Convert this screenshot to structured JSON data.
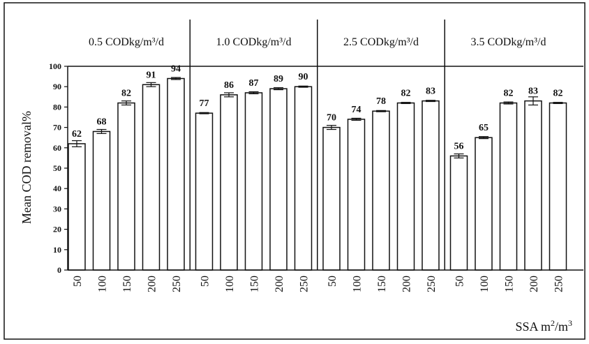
{
  "chart_data": {
    "type": "bar",
    "ylabel": "Mean COD removal%",
    "xlabel_main": "SSA m",
    "xlabel_sup1": "2",
    "xlabel_mid": "/m",
    "xlabel_sup2": "3",
    "ylim": [
      0,
      100
    ],
    "yticks": [
      {
        "v": 0,
        "t": "0"
      },
      {
        "v": 10,
        "t": "10"
      },
      {
        "v": 20,
        "t": "20"
      },
      {
        "v": 30,
        "t": "30"
      },
      {
        "v": 40,
        "t": "40"
      },
      {
        "v": 50,
        "t": "50"
      },
      {
        "v": 60,
        "t": "60"
      },
      {
        "v": 70,
        "t": "70"
      },
      {
        "v": 80,
        "t": "80"
      },
      {
        "v": 90,
        "t": "90"
      },
      {
        "v": 100,
        "t": "100"
      }
    ],
    "grid": false,
    "groups": [
      {
        "title": "0.5 CODkg/m³/d",
        "categories": [
          "50",
          "100",
          "150",
          "200",
          "250"
        ],
        "values": [
          62,
          68,
          82,
          91,
          94
        ],
        "errors": [
          1.5,
          1,
          1,
          1,
          0.5
        ]
      },
      {
        "title": "1.0 CODkg/m³/d",
        "categories": [
          "50",
          "100",
          "150",
          "200",
          "250"
        ],
        "values": [
          77,
          86,
          87,
          89,
          90
        ],
        "errors": [
          0.3,
          1,
          0.5,
          0.5,
          0.3
        ]
      },
      {
        "title": "2.5 CODkg/m³/d",
        "categories": [
          "50",
          "100",
          "150",
          "200",
          "250"
        ],
        "values": [
          70,
          74,
          78,
          82,
          83
        ],
        "errors": [
          1,
          0.5,
          0.3,
          0.3,
          0.3
        ]
      },
      {
        "title": "3.5 CODkg/m³/d",
        "categories": [
          "50",
          "100",
          "150",
          "200",
          "250"
        ],
        "values": [
          56,
          65,
          82,
          83,
          82
        ],
        "errors": [
          1,
          0.5,
          0.5,
          2,
          0.3
        ]
      }
    ],
    "colors": {
      "bar_fill": "#ffffff",
      "bar_stroke": "#111111",
      "frame": "#111111",
      "background": "#ffffff"
    }
  }
}
